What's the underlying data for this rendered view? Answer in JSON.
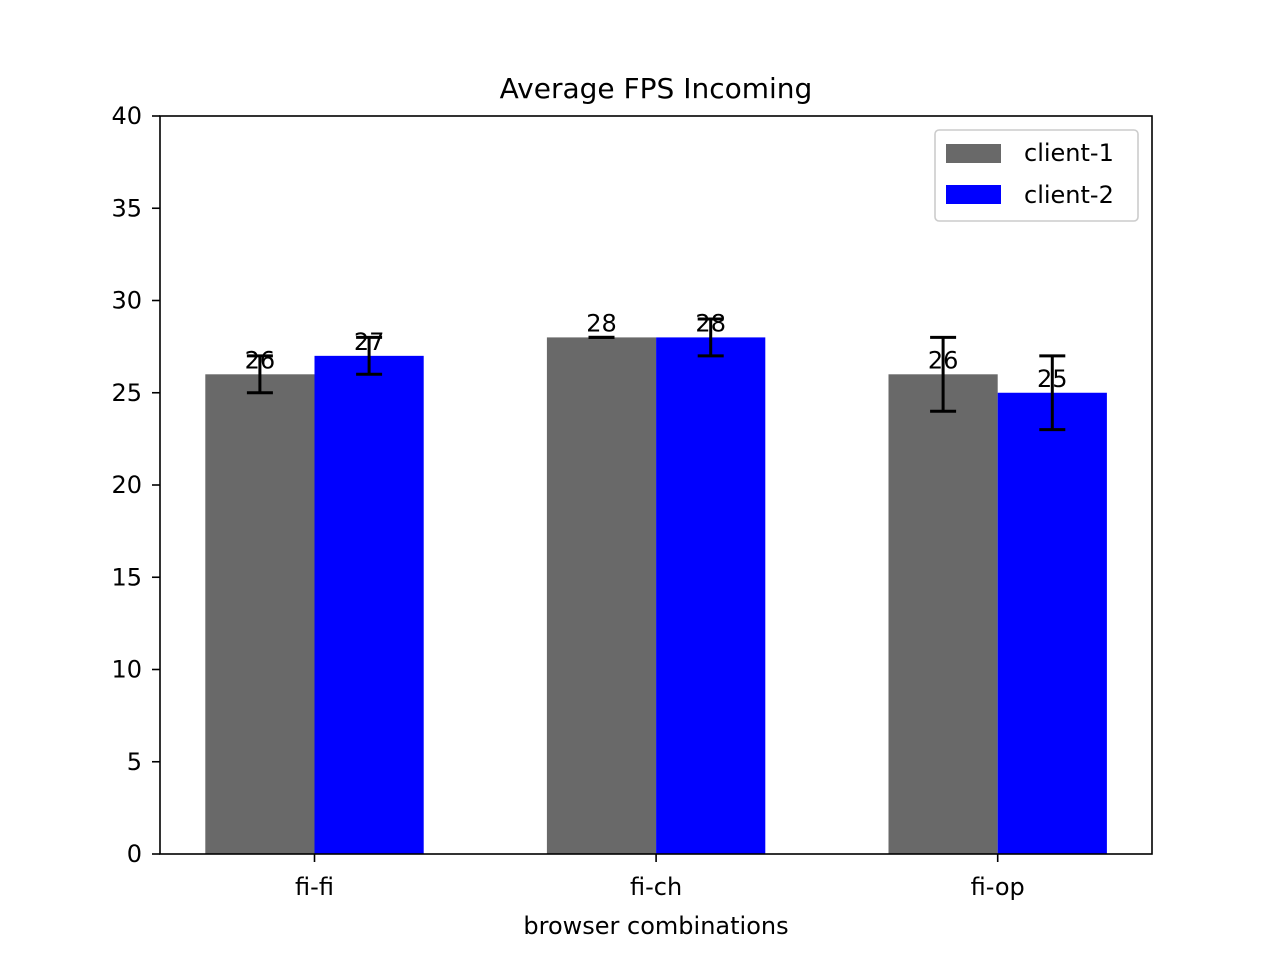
{
  "chart_data": {
    "type": "bar",
    "title": "Average FPS Incoming",
    "xlabel": "browser combinations",
    "ylabel": "",
    "categories": [
      "fi-fi",
      "fi-ch",
      "fi-op"
    ],
    "ylim": [
      0,
      40
    ],
    "yticks": [
      0,
      5,
      10,
      15,
      20,
      25,
      30,
      35,
      40
    ],
    "grid": false,
    "legend_position": "top-right",
    "series": [
      {
        "name": "client-1",
        "color": "#696969",
        "values": [
          26,
          28,
          26
        ],
        "errors": [
          1,
          0,
          2
        ],
        "labels": [
          "26",
          "28",
          "26"
        ]
      },
      {
        "name": "client-2",
        "color": "#0000ff",
        "values": [
          27,
          28,
          25
        ],
        "errors": [
          1,
          1,
          2
        ],
        "labels": [
          "27",
          "28",
          "25"
        ]
      }
    ]
  }
}
